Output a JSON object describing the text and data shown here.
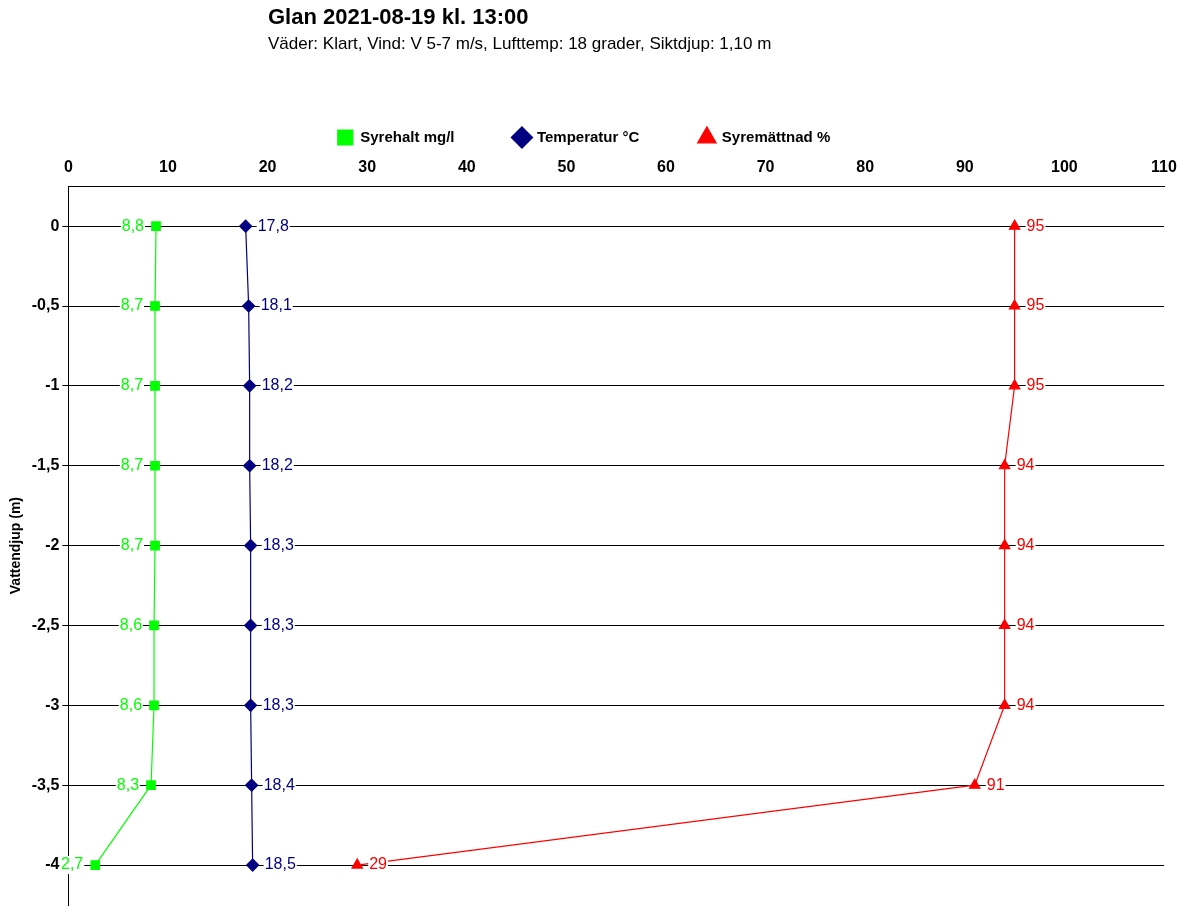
{
  "chart_data": {
    "type": "line",
    "orientation": "horizontal",
    "title": "Glan 2021-08-19 kl. 13:00",
    "subtitle": "Väder: Klart, Vind: V 5-7 m/s, Lufttemp: 18 grader, Siktdjup: 1,10 m",
    "ylabel": "Vattendjup (m)",
    "categories": [
      "0",
      "-0,5",
      "-1",
      "-1,5",
      "-2",
      "-2,5",
      "-3",
      "-3,5",
      "-4"
    ],
    "xlim": [
      0,
      110
    ],
    "xticks": [
      0,
      10,
      20,
      30,
      40,
      50,
      60,
      70,
      80,
      90,
      100,
      110
    ],
    "grid": "y",
    "legend": "top",
    "series": [
      {
        "name": "Syrehalt mg/l",
        "color": "#00ff00",
        "marker": "square",
        "values": [
          8.8,
          8.7,
          8.7,
          8.7,
          8.7,
          8.6,
          8.6,
          8.3,
          2.7
        ],
        "value_labels": [
          "8,8",
          "8,7",
          "8,7",
          "8,7",
          "8,7",
          "8,6",
          "8,6",
          "8,3",
          "2,7"
        ]
      },
      {
        "name": "Temperatur °C",
        "color": "#000080",
        "marker": "diamond",
        "values": [
          17.8,
          18.1,
          18.2,
          18.2,
          18.3,
          18.3,
          18.3,
          18.4,
          18.5
        ],
        "value_labels": [
          "17,8",
          "18,1",
          "18,2",
          "18,2",
          "18,3",
          "18,3",
          "18,3",
          "18,4",
          "18,5"
        ]
      },
      {
        "name": "Syremättnad %",
        "color": "#ff0000",
        "marker": "triangle",
        "values": [
          95,
          95,
          95,
          94,
          94,
          94,
          94,
          91,
          29
        ],
        "value_labels": [
          "95",
          "95",
          "95",
          "94",
          "94",
          "94",
          "94",
          "91",
          "29"
        ]
      }
    ]
  }
}
